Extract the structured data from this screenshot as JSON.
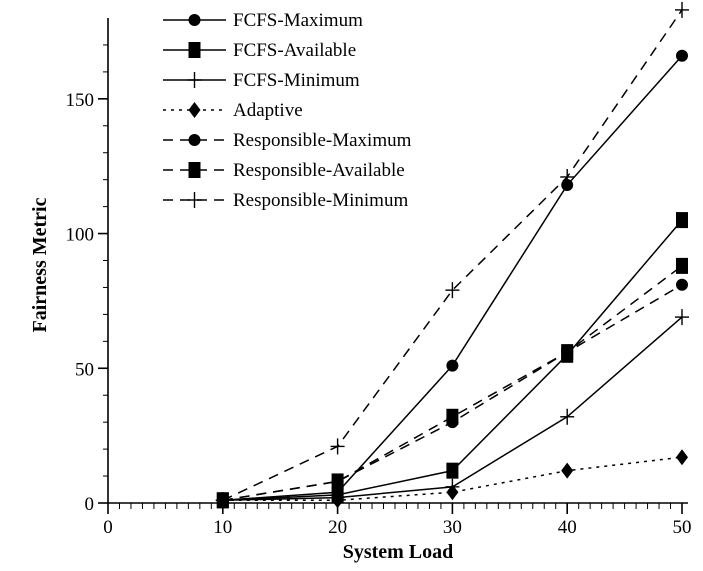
{
  "chart_data": {
    "type": "line",
    "title": "",
    "xlabel": "System Load",
    "ylabel": "Fairness Metric",
    "xlim": [
      0,
      50
    ],
    "ylim": [
      0,
      180
    ],
    "xticks": [
      0,
      10,
      20,
      30,
      40,
      50
    ],
    "yticks": [
      0,
      50,
      100,
      150
    ],
    "grid": false,
    "legend_position": "top-left",
    "x": [
      10,
      20,
      30,
      40,
      50
    ],
    "series": [
      {
        "name": "FCFS-Maximum",
        "values": [
          1,
          4,
          51,
          118,
          166
        ],
        "line": "solid",
        "marker": "circle"
      },
      {
        "name": "FCFS-Available",
        "values": [
          1,
          3,
          12,
          55,
          105
        ],
        "line": "solid",
        "marker": "square"
      },
      {
        "name": "FCFS-Minimum",
        "values": [
          1,
          2,
          6,
          32,
          69
        ],
        "line": "solid",
        "marker": "plus"
      },
      {
        "name": "Adaptive",
        "values": [
          1,
          1,
          4,
          12,
          17
        ],
        "line": "dotted",
        "marker": "diamond"
      },
      {
        "name": "Responsible-Maximum",
        "values": [
          1,
          8,
          30,
          56,
          81
        ],
        "line": "dashed",
        "marker": "circle"
      },
      {
        "name": "Responsible-Available",
        "values": [
          1,
          8,
          32,
          56,
          88
        ],
        "line": "dashed",
        "marker": "square"
      },
      {
        "name": "Responsible-Minimum",
        "values": [
          1,
          21,
          79,
          121,
          183
        ],
        "line": "dashed",
        "marker": "plus"
      }
    ]
  }
}
